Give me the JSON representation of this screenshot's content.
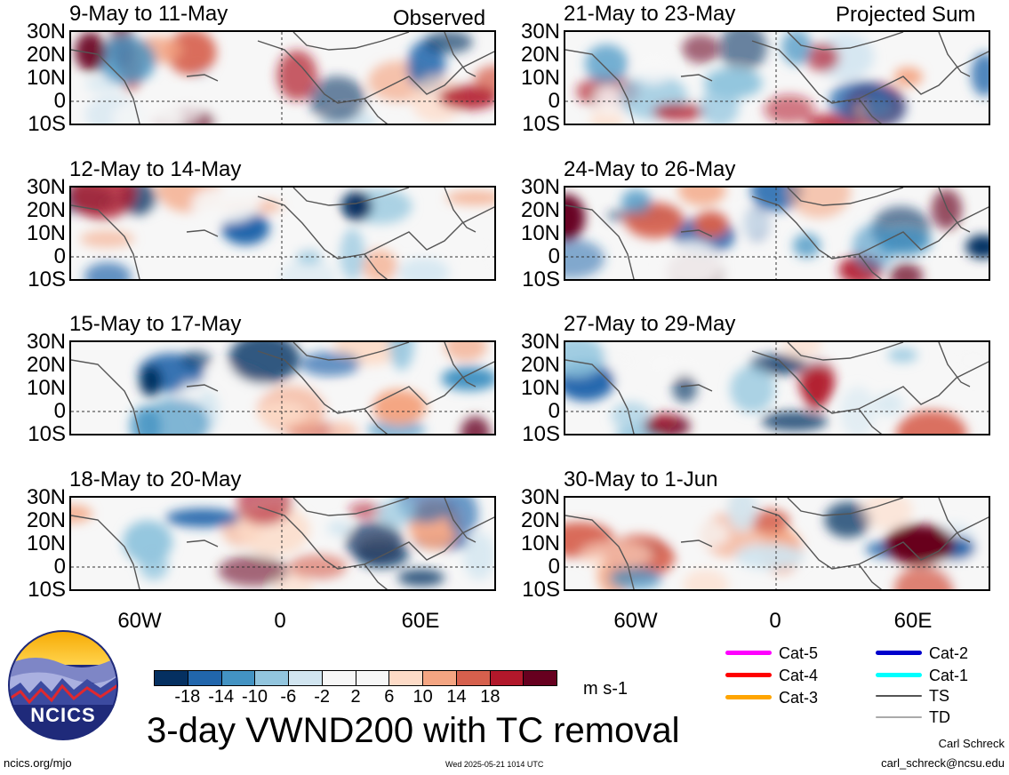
{
  "header": {
    "left_tag": "Observed",
    "right_tag": "Projected Sum"
  },
  "panels": [
    {
      "title": "9-May to 11-May",
      "col": 0,
      "row": 0,
      "seed": 1
    },
    {
      "title": "12-May to 14-May",
      "col": 0,
      "row": 1,
      "seed": 2
    },
    {
      "title": "15-May to 17-May",
      "col": 0,
      "row": 2,
      "seed": 3
    },
    {
      "title": "18-May to 20-May",
      "col": 0,
      "row": 3,
      "seed": 4
    },
    {
      "title": "21-May to 23-May",
      "col": 1,
      "row": 0,
      "seed": 5
    },
    {
      "title": "24-May to 26-May",
      "col": 1,
      "row": 1,
      "seed": 6
    },
    {
      "title": "27-May to 29-May",
      "col": 1,
      "row": 2,
      "seed": 7
    },
    {
      "title": "30-May to 1-Jun",
      "col": 1,
      "row": 3,
      "seed": 8
    }
  ],
  "lat_labels": [
    "30N",
    "20N",
    "10N",
    "0",
    "10S"
  ],
  "lon_labels": [
    "60W",
    "0",
    "60E"
  ],
  "colorbar": {
    "colors": [
      "#053061",
      "#2166ac",
      "#4393c3",
      "#92c5de",
      "#d1e5f0",
      "#f7f7f7",
      "#f7f7f7",
      "#fddbc7",
      "#f4a582",
      "#d6604d",
      "#b2182b",
      "#67001f"
    ],
    "ticks": [
      "-18",
      "-14",
      "-10",
      "-6",
      "-2",
      "2",
      "6",
      "10",
      "14",
      "18"
    ],
    "units": "m s-1"
  },
  "legend": [
    {
      "label": "Cat-5",
      "color": "#ff00ff"
    },
    {
      "label": "Cat-4",
      "color": "#ff0000"
    },
    {
      "label": "Cat-3",
      "color": "#ffa500"
    },
    {
      "label": "Cat-2",
      "color": "#0000cc"
    },
    {
      "label": "Cat-1",
      "color": "#00ffff"
    },
    {
      "label": "TS",
      "color": "#555555"
    },
    {
      "label": "TD",
      "color": "#aaaaaa"
    }
  ],
  "footer": {
    "main_title": "3-day VWND200 with TC removal",
    "logo_text": "NCICS",
    "url": "ncics.org/mjo",
    "timestamp": "Wed 2025-05-21 1014 UTC",
    "author": "Carl Schreck",
    "email": "carl_schreck@ncsu.edu"
  }
}
